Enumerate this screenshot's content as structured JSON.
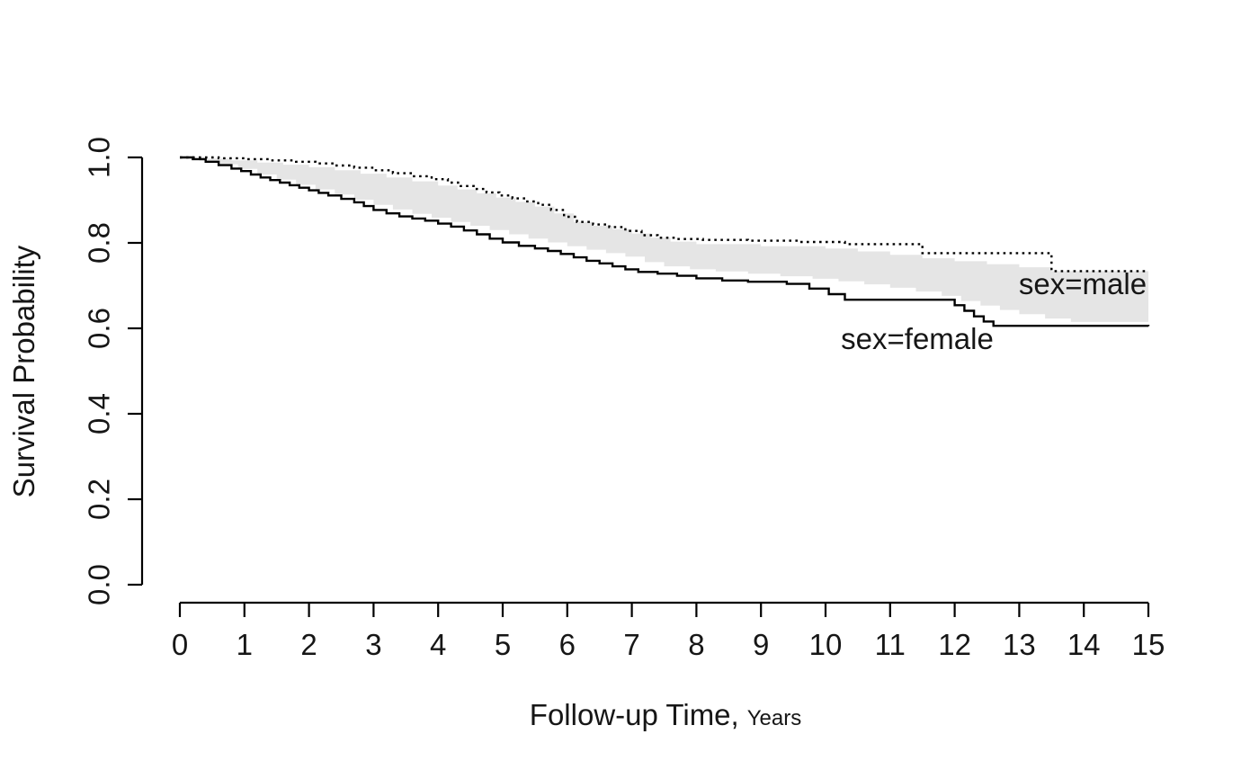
{
  "chart_data": {
    "type": "line",
    "subtype": "kaplan-meier-step",
    "title": "",
    "xlabel": "Follow-up Time,",
    "xlabel_unit": "Years",
    "ylabel": "Survival Probability",
    "xlim": [
      0,
      15
    ],
    "ylim": [
      0.0,
      1.0
    ],
    "grid": "off",
    "legend_position": "labels-on-plot-right",
    "x_ticks": [
      "0",
      "1",
      "2",
      "3",
      "4",
      "5",
      "6",
      "7",
      "8",
      "9",
      "10",
      "11",
      "12",
      "13",
      "14",
      "15"
    ],
    "y_ticks": [
      "0.0",
      "0.2",
      "0.4",
      "0.6",
      "0.8",
      "1.0"
    ],
    "line_color": "#000000",
    "series": [
      {
        "name": "sex=male",
        "style": "dotted",
        "points": [
          [
            0,
            1.0
          ],
          [
            0.6,
            0.998
          ],
          [
            1.0,
            0.996
          ],
          [
            1.4,
            0.993
          ],
          [
            1.8,
            0.99
          ],
          [
            2.1,
            0.986
          ],
          [
            2.4,
            0.981
          ],
          [
            2.7,
            0.976
          ],
          [
            3.0,
            0.97
          ],
          [
            3.3,
            0.963
          ],
          [
            3.6,
            0.956
          ],
          [
            3.9,
            0.949
          ],
          [
            4.15,
            0.941
          ],
          [
            4.35,
            0.933
          ],
          [
            4.55,
            0.926
          ],
          [
            4.75,
            0.918
          ],
          [
            4.95,
            0.911
          ],
          [
            5.15,
            0.904
          ],
          [
            5.35,
            0.897
          ],
          [
            5.55,
            0.889
          ],
          [
            5.75,
            0.877
          ],
          [
            5.95,
            0.861
          ],
          [
            6.15,
            0.849
          ],
          [
            6.4,
            0.843
          ],
          [
            6.65,
            0.837
          ],
          [
            6.9,
            0.828
          ],
          [
            7.15,
            0.818
          ],
          [
            7.4,
            0.812
          ],
          [
            7.7,
            0.809
          ],
          [
            8.1,
            0.807
          ],
          [
            8.8,
            0.805
          ],
          [
            9.6,
            0.802
          ],
          [
            10.3,
            0.797
          ],
          [
            11.5,
            0.776
          ],
          [
            13.5,
            0.734
          ],
          [
            15,
            0.734
          ]
        ]
      },
      {
        "name": "sex=female",
        "style": "solid",
        "points": [
          [
            0,
            1.0
          ],
          [
            0.2,
            0.996
          ],
          [
            0.4,
            0.99
          ],
          [
            0.6,
            0.982
          ],
          [
            0.8,
            0.974
          ],
          [
            0.95,
            0.968
          ],
          [
            1.1,
            0.96
          ],
          [
            1.25,
            0.953
          ],
          [
            1.4,
            0.947
          ],
          [
            1.55,
            0.941
          ],
          [
            1.7,
            0.935
          ],
          [
            1.85,
            0.929
          ],
          [
            2.0,
            0.923
          ],
          [
            2.15,
            0.917
          ],
          [
            2.3,
            0.911
          ],
          [
            2.5,
            0.903
          ],
          [
            2.7,
            0.895
          ],
          [
            2.85,
            0.886
          ],
          [
            3.0,
            0.877
          ],
          [
            3.2,
            0.869
          ],
          [
            3.4,
            0.862
          ],
          [
            3.6,
            0.857
          ],
          [
            3.8,
            0.852
          ],
          [
            4.0,
            0.845
          ],
          [
            4.2,
            0.838
          ],
          [
            4.4,
            0.829
          ],
          [
            4.6,
            0.82
          ],
          [
            4.8,
            0.81
          ],
          [
            5.0,
            0.801
          ],
          [
            5.25,
            0.793
          ],
          [
            5.5,
            0.787
          ],
          [
            5.7,
            0.781
          ],
          [
            5.9,
            0.774
          ],
          [
            6.1,
            0.766
          ],
          [
            6.3,
            0.758
          ],
          [
            6.5,
            0.752
          ],
          [
            6.7,
            0.745
          ],
          [
            6.9,
            0.738
          ],
          [
            7.1,
            0.732
          ],
          [
            7.4,
            0.728
          ],
          [
            7.7,
            0.723
          ],
          [
            8.0,
            0.717
          ],
          [
            8.4,
            0.712
          ],
          [
            8.8,
            0.709
          ],
          [
            9.4,
            0.704
          ],
          [
            9.75,
            0.693
          ],
          [
            10.05,
            0.68
          ],
          [
            10.3,
            0.667
          ],
          [
            12.0,
            0.654
          ],
          [
            12.15,
            0.641
          ],
          [
            12.3,
            0.628
          ],
          [
            12.45,
            0.616
          ],
          [
            12.6,
            0.606
          ],
          [
            15,
            0.605
          ]
        ]
      }
    ],
    "band": {
      "description": "shaded confidence band between curves",
      "color": "#e5e5e5",
      "upper": [
        [
          0,
          1.0
        ],
        [
          0.4,
          0.997
        ],
        [
          0.8,
          0.993
        ],
        [
          1.2,
          0.988
        ],
        [
          1.6,
          0.983
        ],
        [
          2.0,
          0.977
        ],
        [
          2.4,
          0.97
        ],
        [
          2.8,
          0.962
        ],
        [
          3.2,
          0.953
        ],
        [
          3.6,
          0.944
        ],
        [
          4.0,
          0.934
        ],
        [
          4.3,
          0.925
        ],
        [
          4.6,
          0.916
        ],
        [
          4.9,
          0.906
        ],
        [
          5.2,
          0.896
        ],
        [
          5.5,
          0.885
        ],
        [
          5.8,
          0.869
        ],
        [
          6.1,
          0.849
        ],
        [
          6.4,
          0.84
        ],
        [
          6.7,
          0.832
        ],
        [
          7.0,
          0.822
        ],
        [
          7.3,
          0.812
        ],
        [
          7.6,
          0.803
        ],
        [
          8.0,
          0.797
        ],
        [
          9.0,
          0.792
        ],
        [
          10.0,
          0.787
        ],
        [
          10.5,
          0.78
        ],
        [
          11.0,
          0.772
        ],
        [
          11.5,
          0.764
        ],
        [
          12.0,
          0.757
        ],
        [
          12.5,
          0.75
        ],
        [
          13.0,
          0.743
        ],
        [
          13.5,
          0.734
        ],
        [
          15,
          0.734
        ]
      ],
      "lower": [
        [
          0,
          1.0
        ],
        [
          0.3,
          0.992
        ],
        [
          0.6,
          0.984
        ],
        [
          0.9,
          0.973
        ],
        [
          1.2,
          0.96
        ],
        [
          1.5,
          0.948
        ],
        [
          1.8,
          0.936
        ],
        [
          2.1,
          0.925
        ],
        [
          2.4,
          0.913
        ],
        [
          2.7,
          0.901
        ],
        [
          3.0,
          0.889
        ],
        [
          3.3,
          0.878
        ],
        [
          3.6,
          0.868
        ],
        [
          3.9,
          0.859
        ],
        [
          4.2,
          0.849
        ],
        [
          4.5,
          0.84
        ],
        [
          4.8,
          0.83
        ],
        [
          5.1,
          0.82
        ],
        [
          5.4,
          0.81
        ],
        [
          5.7,
          0.801
        ],
        [
          6.0,
          0.792
        ],
        [
          6.3,
          0.784
        ],
        [
          6.6,
          0.776
        ],
        [
          6.9,
          0.768
        ],
        [
          7.2,
          0.755
        ],
        [
          7.5,
          0.745
        ],
        [
          7.9,
          0.738
        ],
        [
          8.3,
          0.733
        ],
        [
          8.8,
          0.728
        ],
        [
          9.3,
          0.722
        ],
        [
          9.8,
          0.716
        ],
        [
          10.2,
          0.71
        ],
        [
          10.6,
          0.703
        ],
        [
          11.0,
          0.695
        ],
        [
          11.4,
          0.686
        ],
        [
          11.8,
          0.676
        ],
        [
          12.1,
          0.664
        ],
        [
          12.4,
          0.653
        ],
        [
          12.7,
          0.643
        ],
        [
          13.0,
          0.633
        ],
        [
          13.4,
          0.623
        ],
        [
          13.8,
          0.615
        ],
        [
          15,
          0.615
        ]
      ]
    }
  }
}
